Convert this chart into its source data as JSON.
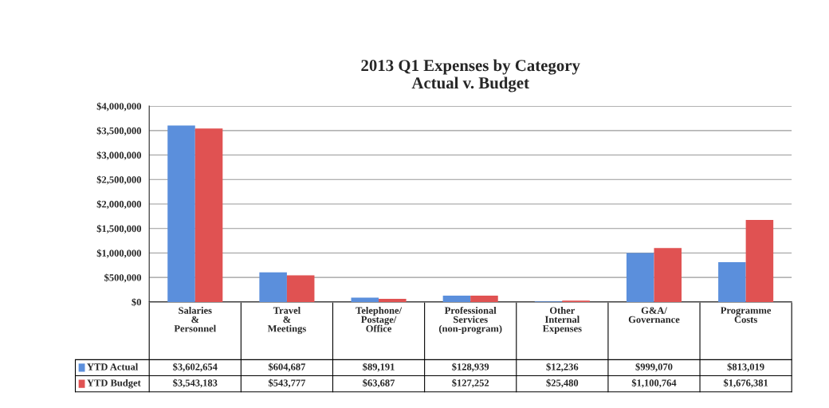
{
  "chart_data": {
    "type": "bar",
    "title": "2013 Q1 Expenses by Category\nActual v. Budget",
    "categories": [
      "Salaries & Personnel",
      "Travel & Meetings",
      "Telephone/ Postage/ Office",
      "Professional Services (non-program)",
      "Other Internal Expenses",
      "G&A/ Governance",
      "Programme Costs"
    ],
    "series": [
      {
        "name": "YTD Actual",
        "color": "#5b8fdc",
        "values": [
          3602654,
          604687,
          89191,
          128939,
          12236,
          999070,
          813019
        ],
        "value_labels": [
          "$3,602,654",
          "$604,687",
          "$89,191",
          "$128,939",
          "$12,236",
          "$999,070",
          "$813,019"
        ]
      },
      {
        "name": "YTD Budget",
        "color": "#e05252",
        "values": [
          3543183,
          543777,
          63687,
          127252,
          25480,
          1100764,
          1676381
        ],
        "value_labels": [
          "$3,543,183",
          "$543,777",
          "$63,687",
          "$127,252",
          "$25,480",
          "$1,100,764",
          "$1,676,381"
        ]
      }
    ],
    "ylim": [
      0,
      4000000
    ],
    "yticks": [
      {
        "value": 0,
        "label": "$0"
      },
      {
        "value": 500000,
        "label": "$500,000"
      },
      {
        "value": 1000000,
        "label": "$1,000,000"
      },
      {
        "value": 1500000,
        "label": "$1,500,000"
      },
      {
        "value": 2000000,
        "label": "$2,000,000"
      },
      {
        "value": 2500000,
        "label": "$2,500,000"
      },
      {
        "value": 3000000,
        "label": "$3,000,000"
      },
      {
        "value": 3500000,
        "label": "$3,500,000"
      },
      {
        "value": 4000000,
        "label": "$4,000,000"
      }
    ],
    "grid": "y",
    "legend": "bottom left"
  }
}
